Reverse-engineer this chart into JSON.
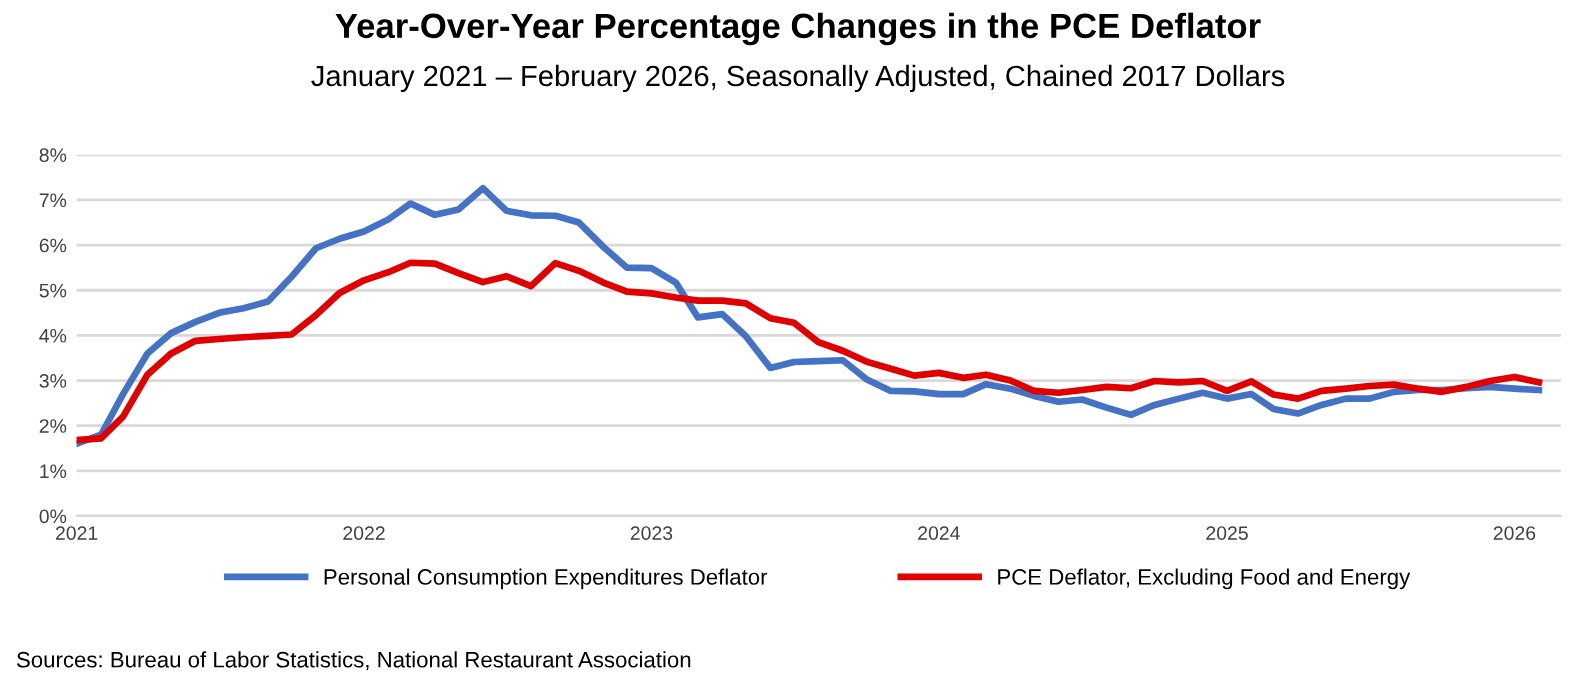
{
  "chart_data": {
    "type": "line",
    "title": "Year-Over-Year Percentage Changes in the PCE Deflator",
    "subtitle": "January 2021 – February 2026, Seasonally Adjusted, Chained 2017 Dollars",
    "x": [
      "2021-01",
      "2021-02",
      "2021-03",
      "2021-04",
      "2021-05",
      "2021-06",
      "2021-07",
      "2021-08",
      "2021-09",
      "2021-10",
      "2021-11",
      "2021-12",
      "2022-01",
      "2022-02",
      "2022-03",
      "2022-04",
      "2022-05",
      "2022-06",
      "2022-07",
      "2022-08",
      "2022-09",
      "2022-10",
      "2022-11",
      "2022-12",
      "2023-01",
      "2023-02",
      "2023-03",
      "2023-04",
      "2023-05",
      "2023-06",
      "2023-07",
      "2023-08",
      "2023-09",
      "2023-10",
      "2023-11",
      "2023-12",
      "2024-01",
      "2024-02",
      "2024-03",
      "2024-04",
      "2024-05",
      "2024-06",
      "2024-07",
      "2024-08",
      "2024-09",
      "2024-10",
      "2024-11",
      "2024-12",
      "2025-01",
      "2025-02",
      "2025-03",
      "2025-04",
      "2025-05",
      "2025-06",
      "2025-07",
      "2025-08",
      "2025-09",
      "2025-10",
      "2025-11",
      "2025-12",
      "2026-01",
      "2026-02"
    ],
    "series": [
      {
        "name": "Personal Consumption Expenditures Deflator",
        "color": "#4472c4",
        "values": [
          1.6,
          1.8,
          2.7,
          3.6,
          4.05,
          4.3,
          4.5,
          4.6,
          4.75,
          5.3,
          5.93,
          6.14,
          6.3,
          6.57,
          6.92,
          6.67,
          6.79,
          7.26,
          6.76,
          6.66,
          6.65,
          6.5,
          5.96,
          5.5,
          5.49,
          5.17,
          4.4,
          4.47,
          3.98,
          3.28,
          3.41,
          3.43,
          3.45,
          3.03,
          2.77,
          2.76,
          2.7,
          2.7,
          2.92,
          2.82,
          2.66,
          2.53,
          2.58,
          2.4,
          2.24,
          2.46,
          2.6,
          2.73,
          2.6,
          2.7,
          2.37,
          2.27,
          2.46,
          2.6,
          2.6,
          2.75,
          2.79,
          2.79,
          2.83,
          2.86,
          2.82,
          2.79
        ]
      },
      {
        "name": "PCE Deflator, Excluding Food and Energy",
        "color": "#e00000",
        "values": [
          1.68,
          1.72,
          2.2,
          3.13,
          3.6,
          3.88,
          3.92,
          3.96,
          3.99,
          4.02,
          4.45,
          4.94,
          5.22,
          5.4,
          5.61,
          5.59,
          5.38,
          5.18,
          5.31,
          5.09,
          5.6,
          5.43,
          5.17,
          4.97,
          4.93,
          4.84,
          4.77,
          4.77,
          4.71,
          4.38,
          4.28,
          3.85,
          3.66,
          3.42,
          3.26,
          3.11,
          3.17,
          3.06,
          3.13,
          3.0,
          2.77,
          2.73,
          2.79,
          2.86,
          2.83,
          2.99,
          2.96,
          2.99,
          2.77,
          2.98,
          2.69,
          2.6,
          2.77,
          2.82,
          2.88,
          2.91,
          2.82,
          2.75,
          2.86,
          2.99,
          3.08,
          2.96
        ]
      }
    ],
    "ylim": [
      0,
      8
    ],
    "yticks": [
      {
        "value": 0,
        "label": "0%"
      },
      {
        "value": 1,
        "label": "1%"
      },
      {
        "value": 2,
        "label": "2%"
      },
      {
        "value": 3,
        "label": "3%"
      },
      {
        "value": 4,
        "label": "4%"
      },
      {
        "value": 5,
        "label": "5%"
      },
      {
        "value": 6,
        "label": "6%"
      },
      {
        "value": 7,
        "label": "7%"
      },
      {
        "value": 8,
        "label": "8%"
      }
    ],
    "xlim": [
      "2021-01",
      "2026-03"
    ],
    "xticks": [
      "2021",
      "2022",
      "2023",
      "2024",
      "2025",
      "2026"
    ],
    "grid": "y",
    "legend": "bottom",
    "marker": "none",
    "line_style": "solid",
    "annotations": [
      "Sources: Bureau of Labor Statistics, National Restaurant Association"
    ]
  }
}
